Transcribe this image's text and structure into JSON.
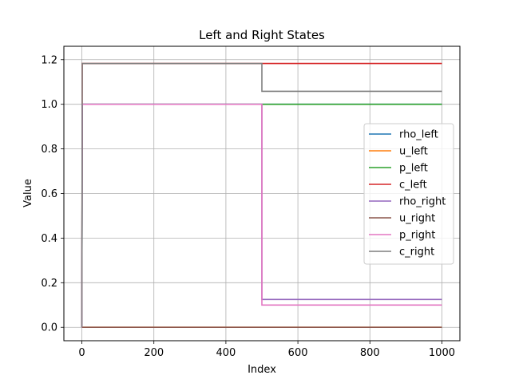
{
  "chart_data": {
    "type": "line",
    "title": "Left and Right States",
    "xlabel": "Index",
    "ylabel": "Value",
    "xlim": [
      -50,
      1050
    ],
    "ylim": [
      -0.06,
      1.26
    ],
    "xticks": [
      0,
      200,
      400,
      600,
      800,
      1000
    ],
    "yticks": [
      0.0,
      0.2,
      0.4,
      0.6,
      0.8,
      1.0,
      1.2
    ],
    "xtick_labels": [
      "0",
      "200",
      "400",
      "600",
      "800",
      "1000"
    ],
    "ytick_labels": [
      "0.0",
      "0.2",
      "0.4",
      "0.6",
      "0.8",
      "1.0",
      "1.2"
    ],
    "grid": true,
    "legend_position": "center-right",
    "series": [
      {
        "name": "rho_left",
        "color": "#1f77b4",
        "x": [
          0,
          1,
          1000
        ],
        "y": [
          0,
          1.0,
          1.0
        ]
      },
      {
        "name": "u_left",
        "color": "#ff7f0e",
        "x": [
          0,
          1000
        ],
        "y": [
          0,
          0
        ]
      },
      {
        "name": "p_left",
        "color": "#2ca02c",
        "x": [
          0,
          1,
          1000
        ],
        "y": [
          0,
          1.0,
          1.0
        ]
      },
      {
        "name": "c_left",
        "color": "#d62728",
        "x": [
          0,
          1,
          1000
        ],
        "y": [
          0,
          1.183,
          1.183
        ]
      },
      {
        "name": "rho_right",
        "color": "#9467bd",
        "x": [
          0,
          1,
          500,
          500,
          1000
        ],
        "y": [
          0,
          1.0,
          1.0,
          0.125,
          0.125
        ]
      },
      {
        "name": "u_right",
        "color": "#8c564b",
        "x": [
          0,
          1000
        ],
        "y": [
          0,
          0
        ]
      },
      {
        "name": "p_right",
        "color": "#e377c2",
        "x": [
          0,
          1,
          500,
          500,
          1000
        ],
        "y": [
          0,
          1.0,
          1.0,
          0.1,
          0.1
        ]
      },
      {
        "name": "c_right",
        "color": "#7f7f7f",
        "x": [
          0,
          1,
          500,
          500,
          1000
        ],
        "y": [
          0,
          1.183,
          1.183,
          1.058,
          1.058
        ]
      }
    ]
  }
}
